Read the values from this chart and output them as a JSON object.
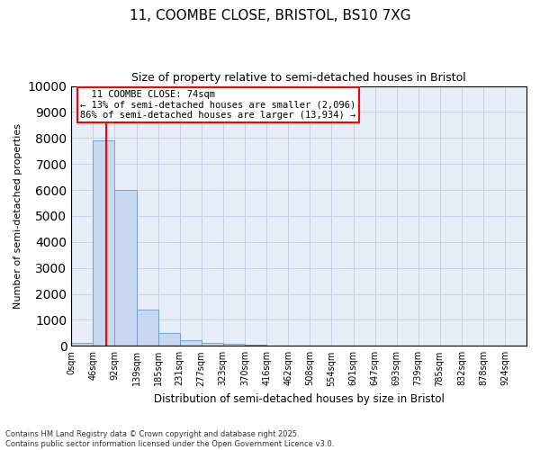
{
  "title_line1": "11, COOMBE CLOSE, BRISTOL, BS10 7XG",
  "title_line2": "Size of property relative to semi-detached houses in Bristol",
  "xlabel": "Distribution of semi-detached houses by size in Bristol",
  "ylabel": "Number of semi-detached properties",
  "property_label": "11 COOMBE CLOSE: 74sqm",
  "pct_smaller": 13,
  "pct_larger": 86,
  "count_smaller": 2096,
  "count_larger": 13934,
  "bin_labels": [
    "0sqm",
    "46sqm",
    "92sqm",
    "139sqm",
    "185sqm",
    "231sqm",
    "277sqm",
    "323sqm",
    "370sqm",
    "416sqm",
    "462sqm",
    "508sqm",
    "554sqm",
    "601sqm",
    "647sqm",
    "693sqm",
    "739sqm",
    "785sqm",
    "832sqm",
    "878sqm",
    "924sqm"
  ],
  "bin_edges": [
    0,
    46,
    92,
    139,
    185,
    231,
    277,
    323,
    370,
    416,
    462,
    508,
    554,
    601,
    647,
    693,
    739,
    785,
    832,
    878,
    924,
    970
  ],
  "bar_values": [
    130,
    7900,
    6000,
    1400,
    500,
    220,
    120,
    80,
    40,
    15,
    8,
    4,
    2,
    1,
    0,
    0,
    0,
    0,
    0,
    0,
    0
  ],
  "bar_color": "#c8d8f0",
  "bar_edge_color": "#6699cc",
  "vline_x": 74,
  "vline_color": "red",
  "grid_color": "#c8d0e8",
  "bg_color": "#e8eef8",
  "ylim": [
    0,
    10000
  ],
  "yticks": [
    0,
    1000,
    2000,
    3000,
    4000,
    5000,
    6000,
    7000,
    8000,
    9000,
    10000
  ],
  "footer_line1": "Contains HM Land Registry data © Crown copyright and database right 2025.",
  "footer_line2": "Contains public sector information licensed under the Open Government Licence v3.0."
}
